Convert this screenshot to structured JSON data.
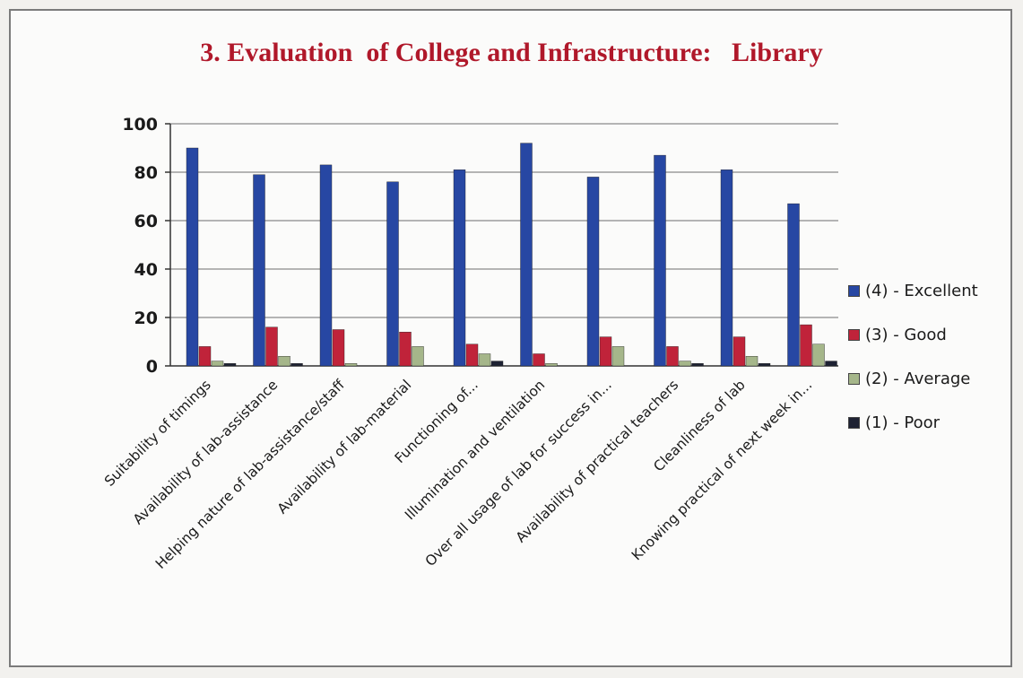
{
  "title": "3. Evaluation  of College and Infrastructure:   Library",
  "colors": [
    "#2747a3",
    "#c0233a",
    "#a5b68a",
    "#1e2233"
  ],
  "chart_data": {
    "type": "bar",
    "title": "3. Evaluation  of College and Infrastructure:   Library",
    "ylim": [
      0,
      100
    ],
    "yticks": [
      0,
      20,
      40,
      60,
      80,
      100
    ],
    "grid": true,
    "legend_position": "right",
    "categories": [
      "Suitability of timings",
      "Availability of lab-assistance",
      "Helping nature of lab-assistance/staff",
      "Availability of lab-material",
      "Functioning of...",
      "Illumination and ventilation",
      "Over all usage of lab for success in...",
      "Availability of practical teachers",
      "Cleanliness of lab",
      "Knowing practical of  next week in..."
    ],
    "series": [
      {
        "name": "(4) - Excellent",
        "values": [
          90,
          79,
          83,
          76,
          81,
          92,
          78,
          87,
          81,
          67
        ]
      },
      {
        "name": "(3) - Good",
        "values": [
          8,
          16,
          15,
          14,
          9,
          5,
          12,
          8,
          12,
          17
        ]
      },
      {
        "name": "(2) - Average",
        "values": [
          2,
          4,
          1,
          8,
          5,
          1,
          8,
          2,
          4,
          9
        ]
      },
      {
        "name": "(1) - Poor",
        "values": [
          1,
          1,
          0,
          0,
          2,
          0,
          0,
          1,
          1,
          2
        ]
      }
    ]
  }
}
